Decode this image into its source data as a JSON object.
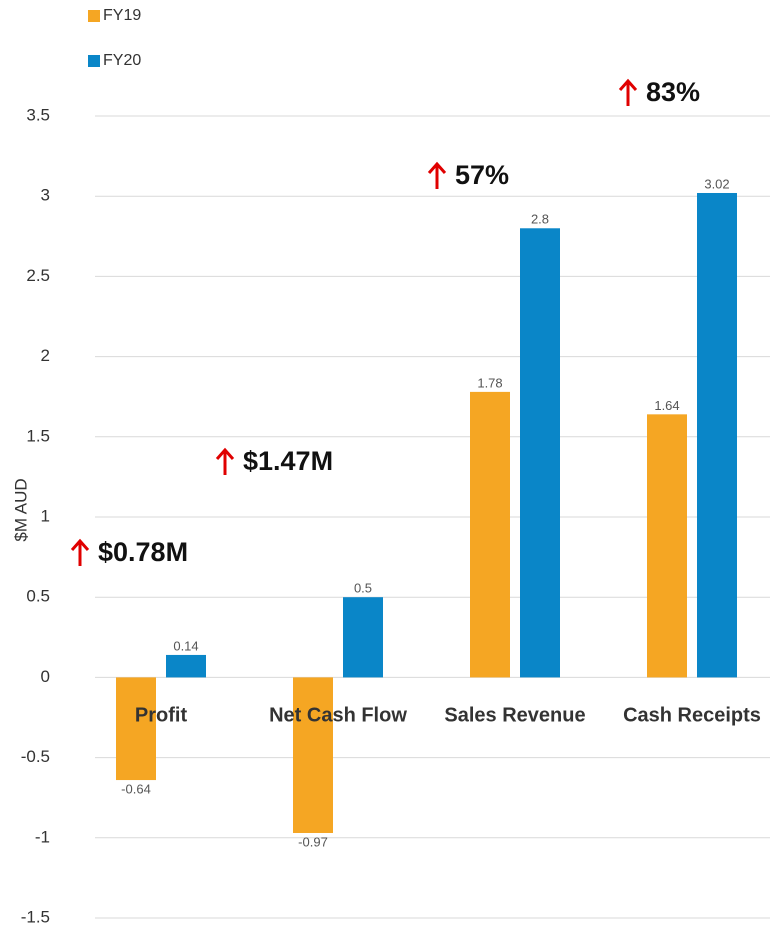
{
  "chart_data": {
    "type": "bar",
    "y_label": "$M AUD",
    "categories": [
      "Profit",
      "Net Cash Flow",
      "Sales Revenue",
      "Cash Receipts"
    ],
    "series": [
      {
        "name": "FY19",
        "color": "#f5a623",
        "values": [
          -0.64,
          -0.97,
          1.78,
          1.64
        ]
      },
      {
        "name": "FY20",
        "color": "#0a86c8",
        "values": [
          0.14,
          0.5,
          2.8,
          3.02
        ]
      }
    ],
    "ylim": [
      -1.5,
      3.5
    ],
    "yticks": [
      -1.5,
      -1,
      -0.5,
      0,
      0.5,
      1,
      1.5,
      2,
      2.5,
      3,
      3.5
    ],
    "grid": true,
    "legend": "top-left",
    "annotations": [
      {
        "text": "$0.78M",
        "category": 0
      },
      {
        "text": "$1.47M",
        "category": 1
      },
      {
        "text": "57%",
        "category": 2
      },
      {
        "text": "83%",
        "category": 3
      }
    ]
  }
}
